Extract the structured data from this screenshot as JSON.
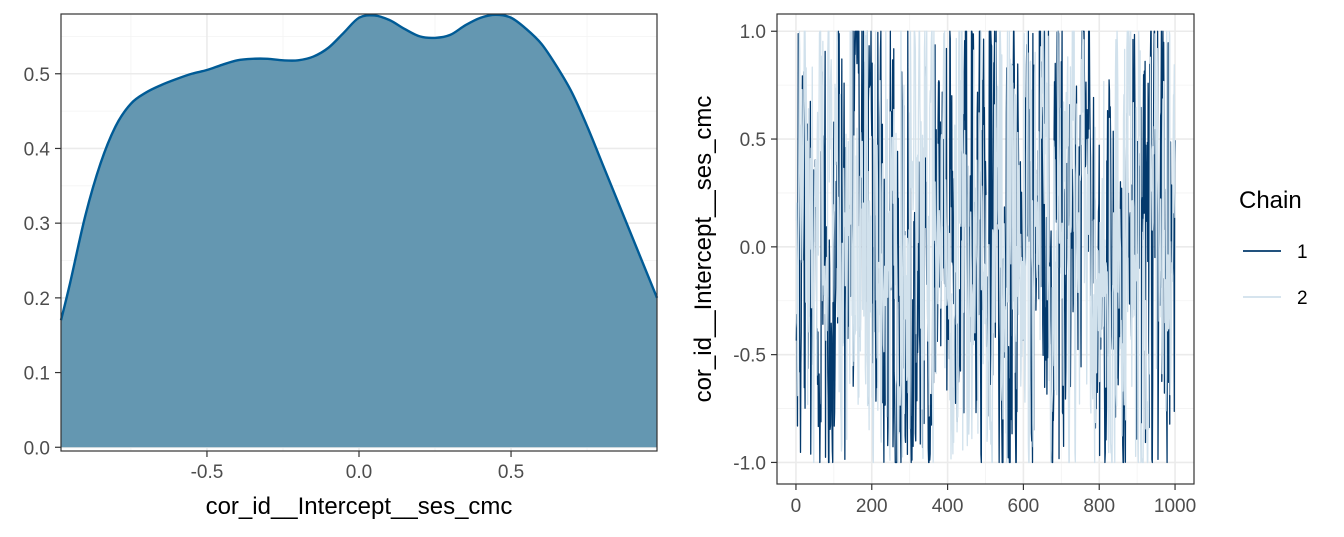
{
  "chart_data": [
    {
      "type": "area",
      "xlabel": "cor_id__Intercept__ses_cmc",
      "ylabel": "",
      "xlim": [
        -0.98,
        0.98
      ],
      "ylim": [
        -0.005,
        0.58
      ],
      "x_ticks": [
        -0.5,
        0.0,
        0.5
      ],
      "x_tick_labels": [
        "-0.5",
        "0.0",
        "0.5"
      ],
      "y_ticks": [
        0.0,
        0.1,
        0.2,
        0.3,
        0.4,
        0.5
      ],
      "y_tick_labels": [
        "0.0",
        "0.1",
        "0.2",
        "0.3",
        "0.4",
        "0.5"
      ],
      "grid": true,
      "colors": {
        "fill": "#6497b1",
        "line": "#005b96"
      },
      "x": [
        -0.98,
        -0.95,
        -0.9,
        -0.85,
        -0.8,
        -0.75,
        -0.7,
        -0.65,
        -0.6,
        -0.55,
        -0.5,
        -0.45,
        -0.4,
        -0.35,
        -0.3,
        -0.25,
        -0.2,
        -0.15,
        -0.1,
        -0.05,
        0.0,
        0.05,
        0.1,
        0.15,
        0.2,
        0.25,
        0.3,
        0.35,
        0.4,
        0.45,
        0.5,
        0.55,
        0.6,
        0.65,
        0.7,
        0.75,
        0.8,
        0.85,
        0.9,
        0.95,
        0.98
      ],
      "y": [
        0.17,
        0.22,
        0.31,
        0.38,
        0.43,
        0.46,
        0.475,
        0.485,
        0.493,
        0.5,
        0.505,
        0.512,
        0.518,
        0.52,
        0.52,
        0.518,
        0.518,
        0.523,
        0.535,
        0.555,
        0.575,
        0.578,
        0.572,
        0.56,
        0.55,
        0.548,
        0.552,
        0.565,
        0.575,
        0.579,
        0.575,
        0.56,
        0.54,
        0.51,
        0.475,
        0.43,
        0.38,
        0.33,
        0.28,
        0.23,
        0.2
      ]
    },
    {
      "type": "line",
      "xlabel": "",
      "ylabel": "cor_id__Intercept__ses_cmc",
      "xlim": [
        -50,
        1050
      ],
      "ylim": [
        -1.1,
        1.08
      ],
      "x_ticks": [
        0,
        200,
        400,
        600,
        800,
        1000
      ],
      "x_tick_labels": [
        "0",
        "200",
        "400",
        "600",
        "800",
        "1000"
      ],
      "y_ticks": [
        -1.0,
        -0.5,
        0.0,
        0.5,
        1.0
      ],
      "y_tick_labels": [
        "-1.0",
        "-0.5",
        "0.0",
        "0.5",
        "1.0"
      ],
      "grid": true,
      "legend": {
        "title": "Chain",
        "position": "right"
      },
      "series": [
        {
          "name": "1",
          "color": "#03396c",
          "n_iterations": 1000,
          "value_range": [
            -1.0,
            1.0
          ]
        },
        {
          "name": "2",
          "color": "#d1e1ec",
          "n_iterations": 1000,
          "value_range": [
            -1.0,
            1.0
          ]
        }
      ]
    }
  ]
}
